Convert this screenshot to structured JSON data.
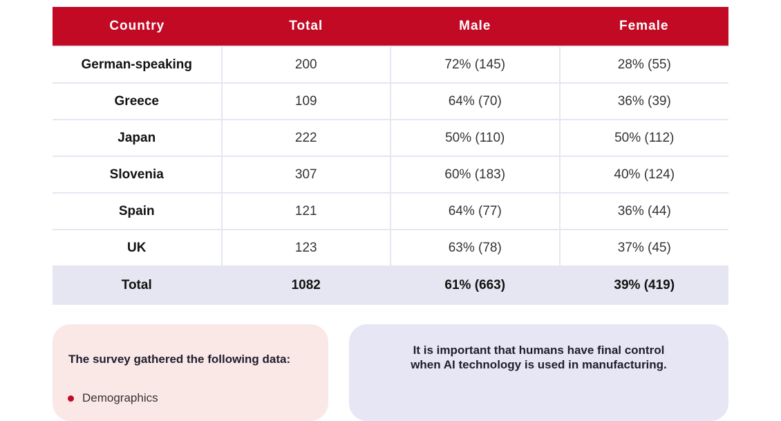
{
  "table": {
    "headers": [
      "Country",
      "Total",
      "Male",
      "Female"
    ],
    "rows": [
      [
        "German-speaking",
        "200",
        "72% (145)",
        "28% (55)"
      ],
      [
        "Greece",
        "109",
        "64% (70)",
        "36% (39)"
      ],
      [
        "Japan",
        "222",
        "50% (110)",
        "50% (112)"
      ],
      [
        "Slovenia",
        "307",
        "60% (183)",
        "40% (124)"
      ],
      [
        "Spain",
        "121",
        "64% (77)",
        "36% (44)"
      ],
      [
        "UK",
        "123",
        "63% (78)",
        "37% (45)"
      ]
    ],
    "total": [
      "Total",
      "1082",
      "61% (663)",
      "39% (419)"
    ]
  },
  "survey_box": {
    "title": "The survey gathered the following data:",
    "items": [
      "Demographics"
    ]
  },
  "quote_box": {
    "line1": "It is important that humans have final control",
    "line2": "when AI technology is used in manufacturing."
  },
  "colors": {
    "header": "#c20a24",
    "total_row": "#e6e6f2",
    "survey_box": "#fae8e6",
    "quote_box": "#e6e6f4"
  }
}
